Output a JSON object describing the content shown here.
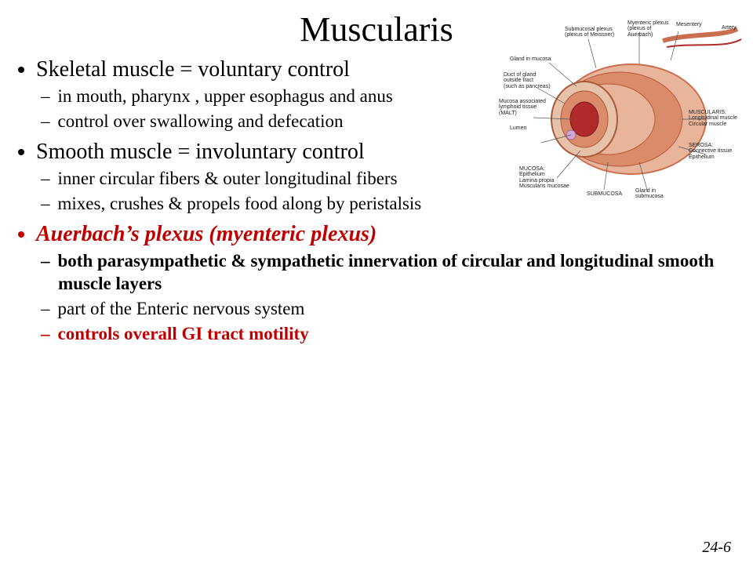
{
  "title": "Muscularis",
  "page_number": "24-6",
  "colors": {
    "text": "#000000",
    "highlight": "#c00000",
    "background": "#ffffff",
    "fig_tissue1": "#d98b6a",
    "fig_tissue2": "#e8b59a",
    "fig_lumen": "#b02a2a",
    "fig_outer": "#c96f4f",
    "fig_line": "#555555"
  },
  "bullets": [
    {
      "text": "Skeletal muscle = voluntary control",
      "style": "plain",
      "sub": [
        {
          "text": "in mouth, pharynx , upper esophagus and anus",
          "style": "plain"
        },
        {
          "text": "control over swallowing and defecation",
          "style": "plain"
        }
      ]
    },
    {
      "text": "Smooth muscle = involuntary control",
      "style": "plain",
      "sub": [
        {
          "text": "inner circular fibers & outer longitudinal fibers",
          "style": "plain"
        },
        {
          "text": "mixes, crushes & propels food along by peristalsis",
          "style": "plain"
        }
      ]
    },
    {
      "text": "Auerbach’s plexus (myenteric plexus)",
      "style": "red-bold-italic",
      "sub": [
        {
          "text": "both parasympathetic & sympathetic innervation of circular and longitudinal smooth muscle layers",
          "style": "bold"
        },
        {
          "text": "part of the Enteric nervous system",
          "style": "plain"
        },
        {
          "text": "controls overall GI tract motility",
          "style": "red-bold"
        }
      ]
    }
  ],
  "figure_labels": {
    "submucosal": "Submucosal plexus\n(plexus of Meissner)",
    "myenteric": "Myenteric plexus\n(plexus of\nAuerbach)",
    "mesentery": "Mesentery",
    "artery": "Artery",
    "gland_mucosa": "Gland in mucosa",
    "duct": "Duct of gland\noutside tract\n(such as pancreas)",
    "malt": "Mucosa associated\nlymphoid tissue\n(MALT)",
    "lumen": "Lumen",
    "mucosa": "MUCOSA:\nEpithelium\nLamina propia\nMuscularis mucosae",
    "submucosa": "SUBMUCOSA",
    "gland_sub": "Gland in\nsubmucosa",
    "muscularis": "MUSCULARIS:\nLongitudinal muscle\nCircular muscle",
    "serosa": "SEROSA:\nConnective tissue\nEpithelium"
  }
}
